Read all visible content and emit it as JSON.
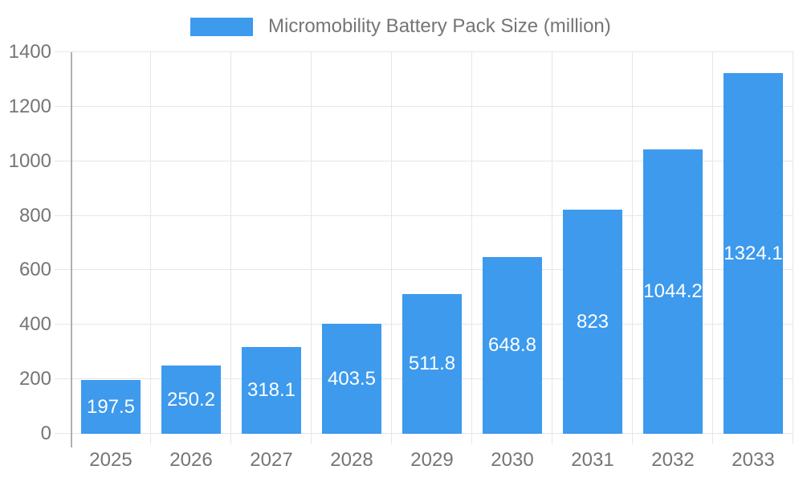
{
  "chart_data": {
    "type": "bar",
    "title": "Micromobility Battery Pack Size (million)",
    "xlabel": "",
    "ylabel": "",
    "categories": [
      "2025",
      "2026",
      "2027",
      "2028",
      "2029",
      "2030",
      "2031",
      "2032",
      "2033"
    ],
    "series": [
      {
        "name": "Micromobility Battery Pack Size (million)",
        "values": [
          197.5,
          250.2,
          318.1,
          403.5,
          511.8,
          648.8,
          823,
          1044.2,
          1324.1
        ],
        "value_labels": [
          "197.5",
          "250.2",
          "318.1",
          "403.5",
          "511.8",
          "648.8",
          "823",
          "1044.2",
          "1324.1"
        ]
      }
    ],
    "ylim": [
      0,
      1400
    ],
    "ytick_interval": 200,
    "ytick_labels": [
      "0",
      "200",
      "400",
      "600",
      "800",
      "1000",
      "1200",
      "1400"
    ],
    "legend_position": "top",
    "grid": "both",
    "colors": {
      "bar": "#3D9AED",
      "value_label": "#ffffff",
      "axis_text": "#757575",
      "grid_line": "#e6e6e6",
      "axis_line": "#b0b0b0",
      "background": "#ffffff"
    }
  }
}
